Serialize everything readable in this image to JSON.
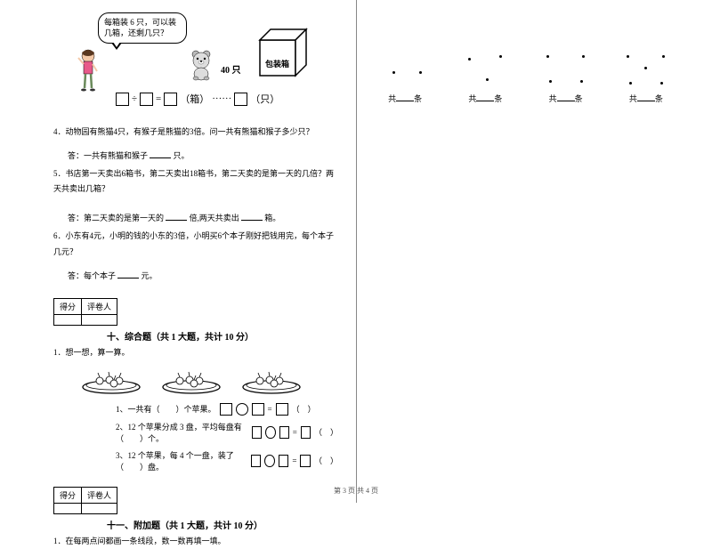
{
  "scene": {
    "bubble_text": "每箱装 6 只，可以装几箱，还剩几只？",
    "qty": "40 只",
    "box_label": "包装箱",
    "eq_div": "÷",
    "eq_eq": "=",
    "eq_unit1": "（箱）",
    "eq_dots": "······",
    "eq_unit2": "（只）"
  },
  "q4": {
    "text": "4．动物园有熊猫4只，有猴子是熊猫的3倍。问一共有熊猫和猴子多少只？",
    "ans_prefix": "答：一共有熊猫和猴子",
    "ans_suffix": "只。"
  },
  "q5": {
    "text": "5．书店第一天卖出6箱书，第二天卖出18箱书，第二天卖的是第一天的几倍？两天共卖出几箱？",
    "ans1a": "答：第二天卖的是第一天的",
    "ans1b": "倍,两天共卖出",
    "ans1c": "箱。"
  },
  "q6": {
    "text": "6．小东有4元，小明的钱的小东的3倍，小明买6个本子刚好把钱用完，每个本子几元？",
    "ans_prefix": "答：每个本子",
    "ans_suffix": "元。"
  },
  "score": {
    "c1": "得分",
    "c2": "评卷人"
  },
  "sec10": {
    "title": "十、综合题（共 1 大题，共计 10 分）",
    "q1": "1．想一想，算一算。",
    "s1": "1、一共有（　　）个苹果。",
    "s2": "2、12 个苹果分成 3 盘，平均每盘有（　　）个。",
    "s3": "3、12 个苹果，每 4 个一盘，装了（　　）盘。"
  },
  "sec11": {
    "title": "十一、附加题（共 1 大题，共计 10 分）",
    "q1": "1．在每两点间都画一条线段，数一数再填一填。"
  },
  "right": {
    "g_label_a": "共",
    "g_label_b": "条",
    "groups": [
      {
        "dots": [
          [
            20,
            30
          ],
          [
            50,
            30
          ]
        ]
      },
      {
        "dots": [
          [
            15,
            15
          ],
          [
            50,
            12
          ],
          [
            35,
            38
          ]
        ]
      },
      {
        "dots": [
          [
            12,
            12
          ],
          [
            52,
            12
          ],
          [
            15,
            40
          ],
          [
            50,
            40
          ]
        ]
      },
      {
        "dots": [
          [
            12,
            12
          ],
          [
            52,
            12
          ],
          [
            32,
            25
          ],
          [
            15,
            42
          ],
          [
            50,
            42
          ]
        ]
      }
    ]
  },
  "footer": "第 3 页 共 4 页"
}
